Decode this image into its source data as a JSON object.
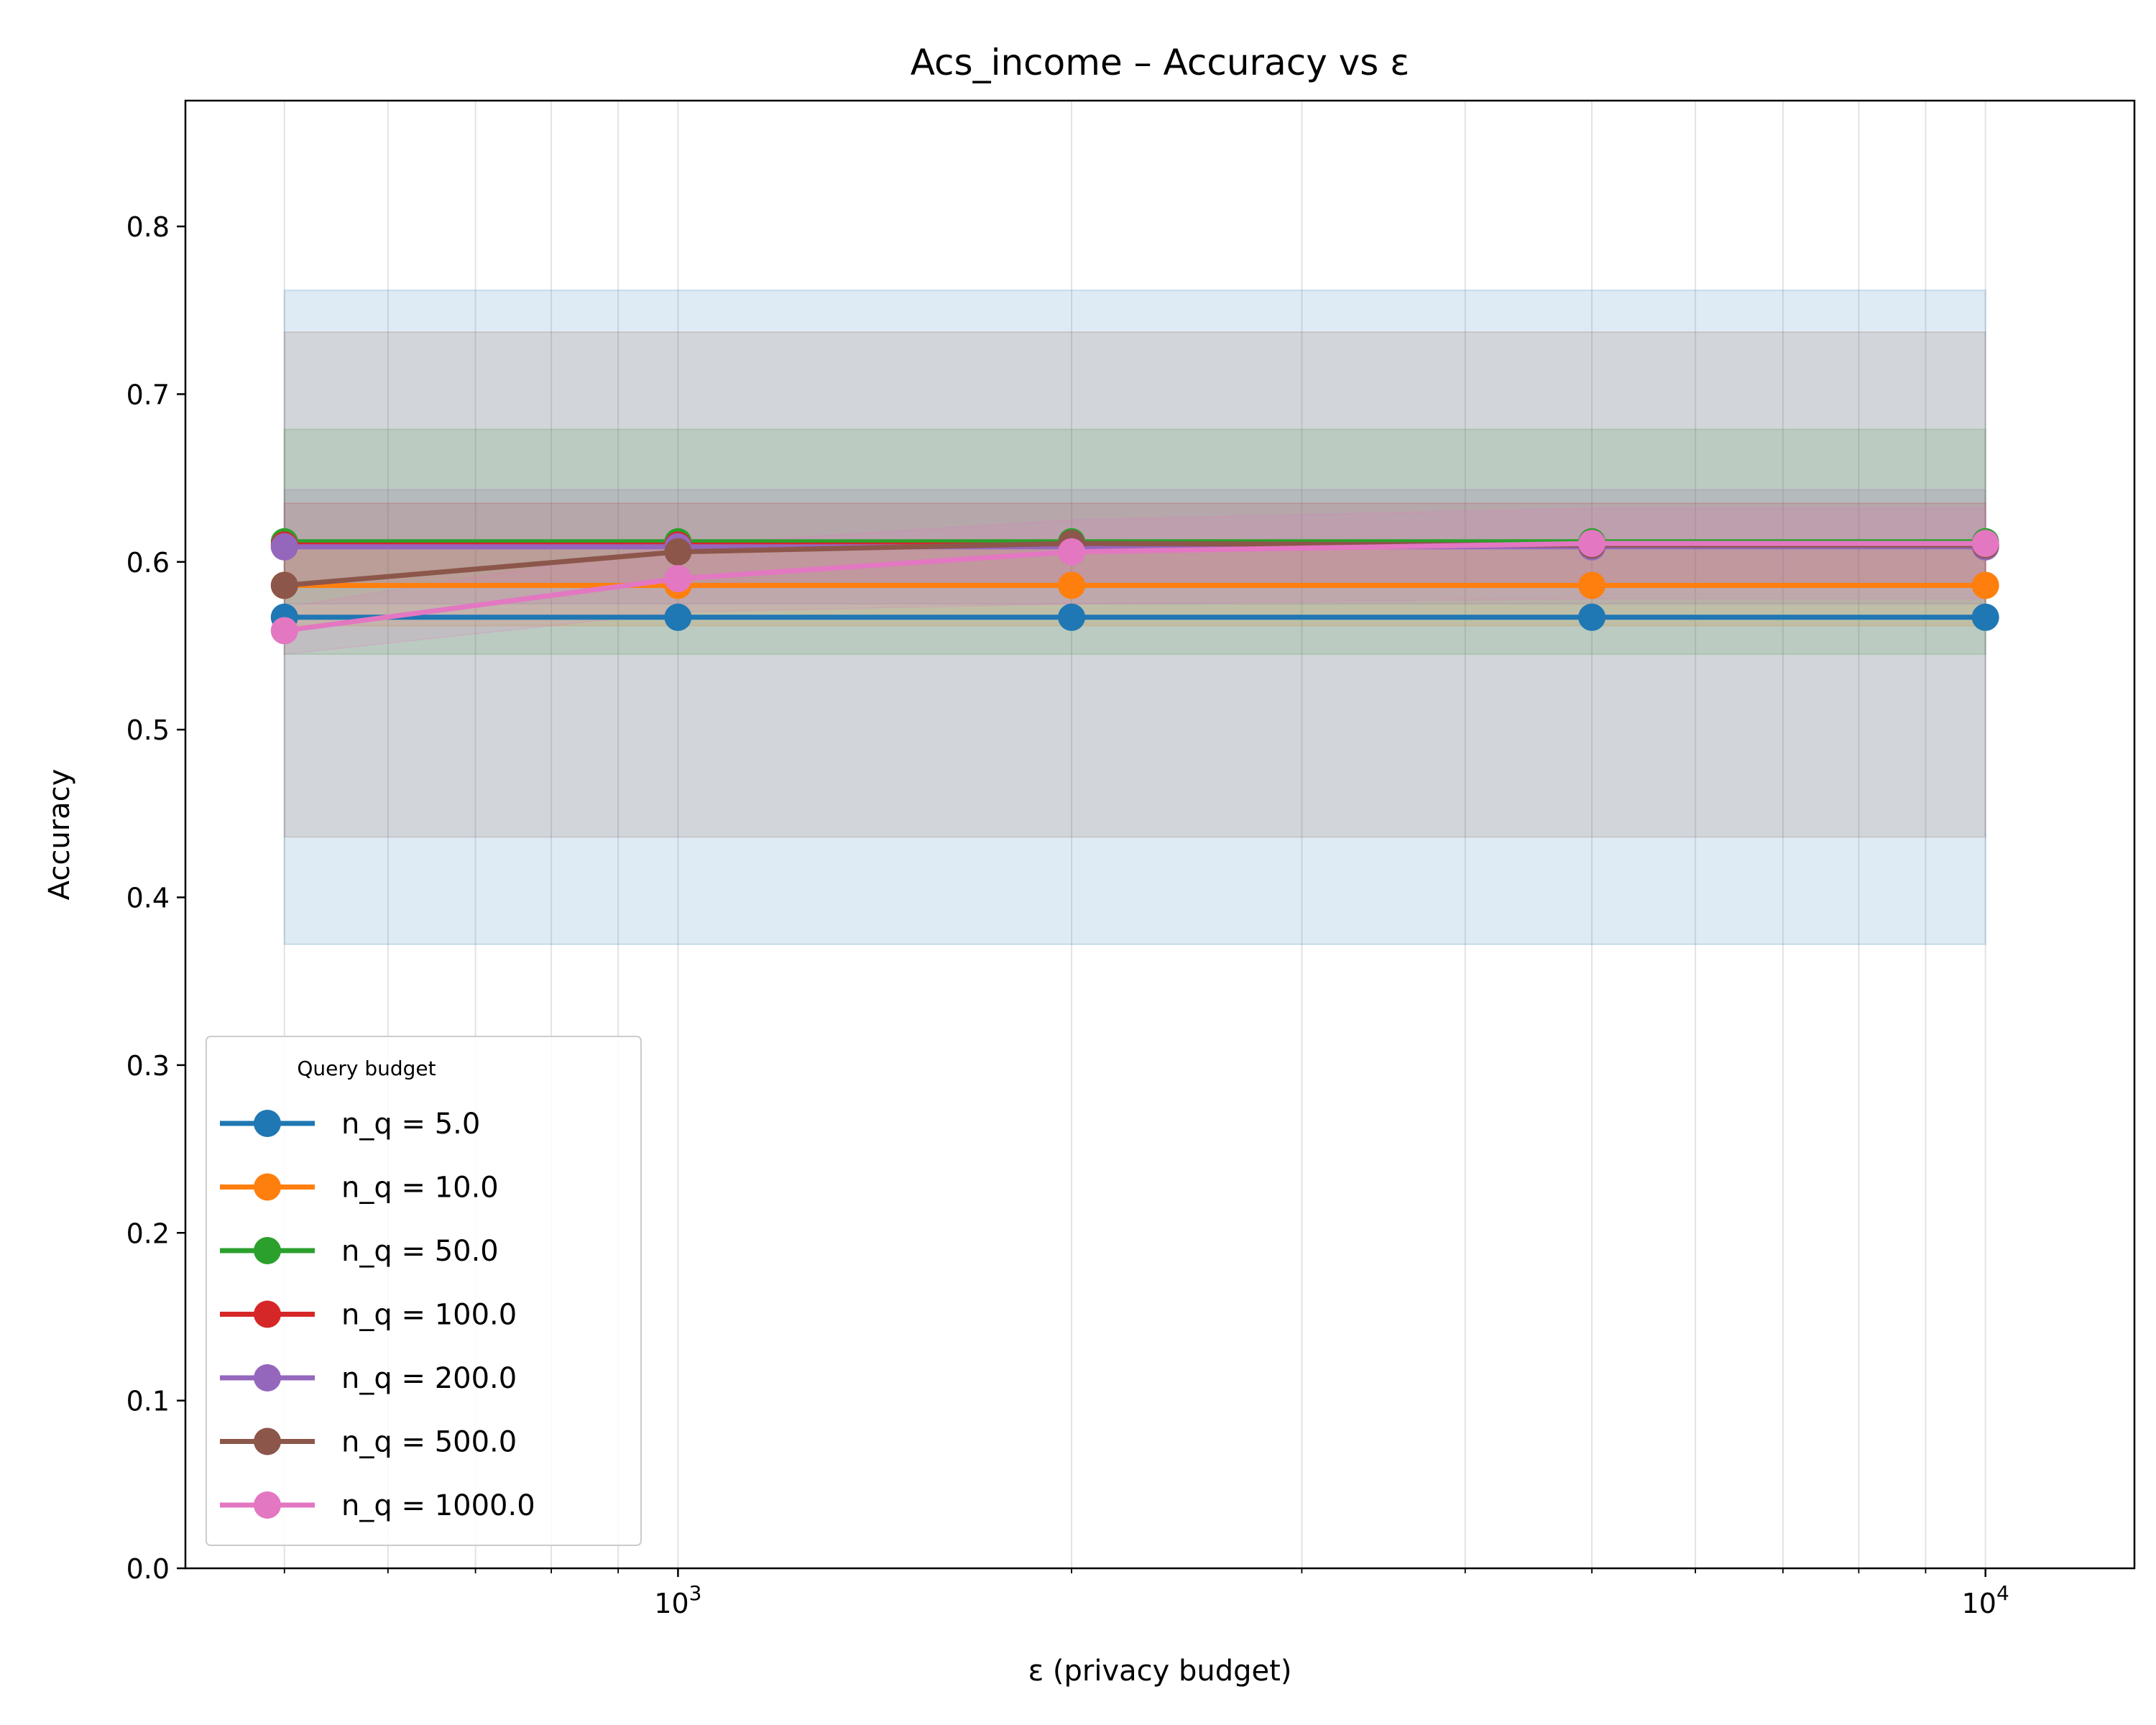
{
  "chart_data": {
    "type": "line",
    "title": "Acs_income – Accuracy vs ε",
    "xlabel": "ε (privacy budget)",
    "ylabel": "Accuracy",
    "xscale": "log",
    "xlim": [
      420,
      13000
    ],
    "ylim": [
      0.0,
      0.875
    ],
    "x": [
      500,
      1000,
      2000,
      5000,
      10000
    ],
    "y_ticks": [
      "0.0",
      "0.1",
      "0.2",
      "0.3",
      "0.4",
      "0.5",
      "0.6",
      "0.7",
      "0.8"
    ],
    "x_tick_base": "10",
    "x_ticks": [
      {
        "value": 1000,
        "exp": "3"
      },
      {
        "value": 10000,
        "exp": "4"
      }
    ],
    "grid": "vertical major and minor",
    "legend": {
      "title": "Query budget",
      "placement": "lower-left"
    },
    "series": [
      {
        "name": "n_q = 5.0",
        "color": "#1f77b4",
        "values": [
          0.567,
          0.567,
          0.567,
          0.567,
          0.567
        ],
        "band_lower": [
          0.372,
          0.372,
          0.372,
          0.372,
          0.372
        ],
        "band_upper": [
          0.762,
          0.762,
          0.762,
          0.762,
          0.762
        ]
      },
      {
        "name": "n_q = 10.0",
        "color": "#ff7f0e",
        "values": [
          0.586,
          0.586,
          0.586,
          0.586,
          0.586
        ],
        "band_lower": [
          0.562,
          0.562,
          0.562,
          0.562,
          0.562
        ],
        "band_upper": [
          0.61,
          0.61,
          0.61,
          0.61,
          0.61
        ]
      },
      {
        "name": "n_q = 50.0",
        "color": "#2ca02c",
        "values": [
          0.612,
          0.612,
          0.612,
          0.612,
          0.612
        ],
        "band_lower": [
          0.545,
          0.545,
          0.545,
          0.545,
          0.545
        ],
        "band_upper": [
          0.679,
          0.679,
          0.679,
          0.679,
          0.679
        ]
      },
      {
        "name": "n_q = 100.0",
        "color": "#d62728",
        "values": [
          0.61,
          0.61,
          0.61,
          0.61,
          0.61
        ],
        "band_lower": [
          0.585,
          0.585,
          0.585,
          0.585,
          0.585
        ],
        "band_upper": [
          0.635,
          0.635,
          0.635,
          0.635,
          0.635
        ]
      },
      {
        "name": "n_q = 200.0",
        "color": "#9467bd",
        "values": [
          0.609,
          0.609,
          0.609,
          0.609,
          0.609
        ],
        "band_lower": [
          0.575,
          0.575,
          0.575,
          0.575,
          0.575
        ],
        "band_upper": [
          0.643,
          0.643,
          0.643,
          0.643,
          0.643
        ]
      },
      {
        "name": "n_q = 500.0",
        "color": "#8c564b",
        "values": [
          0.586,
          0.606,
          0.611,
          0.61,
          0.61
        ],
        "band_lower": [
          0.436,
          0.436,
          0.436,
          0.436,
          0.436
        ],
        "band_upper": [
          0.737,
          0.737,
          0.737,
          0.737,
          0.737
        ]
      },
      {
        "name": "n_q = 1000.0",
        "color": "#e377c2",
        "values": [
          0.559,
          0.59,
          0.606,
          0.611,
          0.611
        ],
        "band_lower": [
          0.545,
          0.57,
          0.575,
          0.578,
          0.578
        ],
        "band_upper": [
          0.573,
          0.61,
          0.625,
          0.632,
          0.632
        ]
      }
    ]
  }
}
